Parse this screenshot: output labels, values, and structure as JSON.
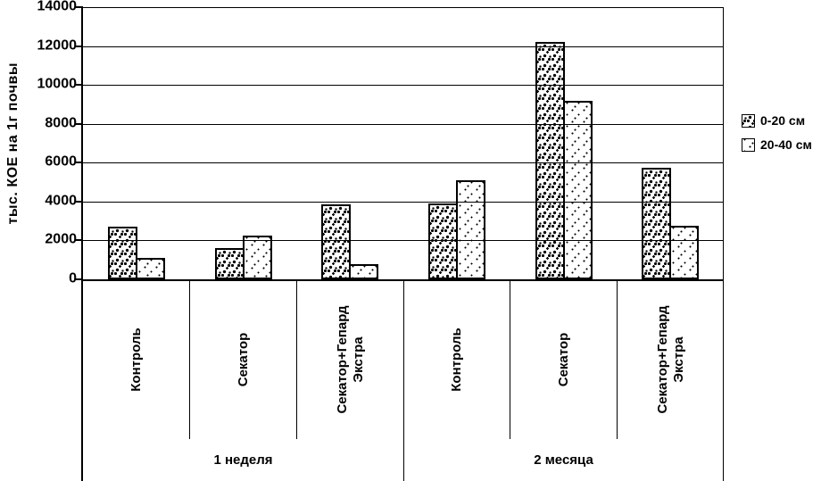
{
  "chart_data": {
    "type": "bar",
    "title": "",
    "ylabel": "тыс. КОЕ на 1г почвы",
    "xlabel": "",
    "ylim": [
      0,
      14000
    ],
    "yticks": [
      0,
      2000,
      4000,
      6000,
      8000,
      10000,
      12000,
      14000
    ],
    "grid": true,
    "legend_position": "right",
    "colors": {
      "foreground": "#000000",
      "background": "#ffffff"
    },
    "groups": [
      {
        "label": "1 неделя",
        "categories": [
          "Контроль",
          "Секатор",
          "Секатор+Гепард Экстра"
        ]
      },
      {
        "label": "2 месяца",
        "categories": [
          "Контроль",
          "Секатор",
          "Секатор+Гепард Экстра"
        ]
      }
    ],
    "series": [
      {
        "name": "0-20 см",
        "pattern": "dense-speckle",
        "values": [
          2700,
          1600,
          3850,
          3900,
          12200,
          5750
        ]
      },
      {
        "name": "20-40 см",
        "pattern": "light-speckle",
        "values": [
          1100,
          2250,
          800,
          5100,
          9200,
          2750
        ]
      }
    ]
  }
}
